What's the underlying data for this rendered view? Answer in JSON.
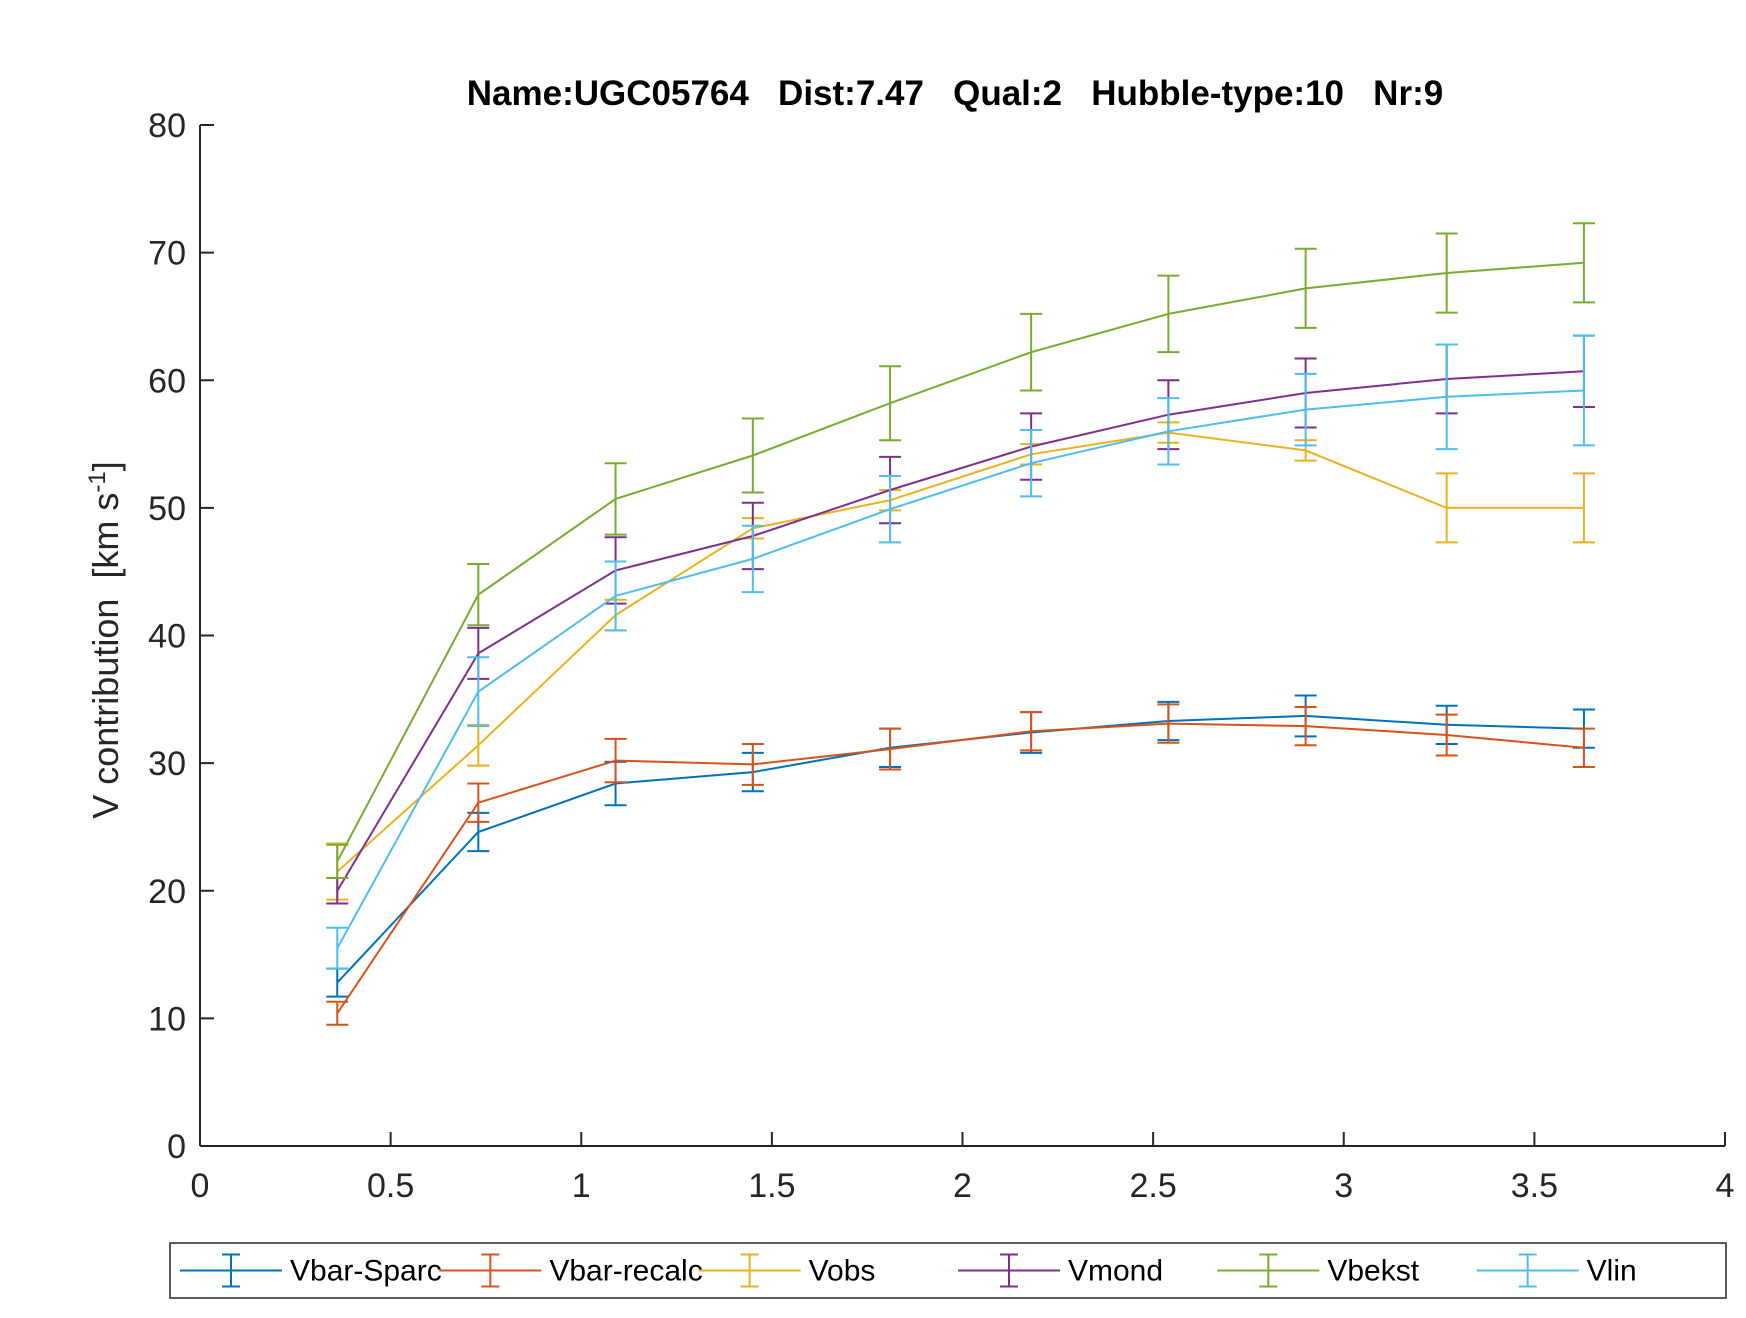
{
  "chart_data": {
    "type": "line",
    "title": "Name:UGC05764   Dist:7.47   Qual:2   Hubble-type:10   Nr:9",
    "xlabel": "",
    "ylabel_main": "V contribution  [km s",
    "ylabel_sup": "-1",
    "ylabel_close": "]",
    "xlim": [
      0,
      4
    ],
    "ylim": [
      0,
      80
    ],
    "xticks": [
      0,
      0.5,
      1,
      1.5,
      2,
      2.5,
      3,
      3.5,
      4
    ],
    "xtick_labels": [
      "0",
      "0.5",
      "1",
      "1.5",
      "2",
      "2.5",
      "3",
      "3.5",
      "4"
    ],
    "yticks": [
      0,
      10,
      20,
      30,
      40,
      50,
      60,
      70,
      80
    ],
    "ytick_labels": [
      "0",
      "10",
      "20",
      "30",
      "40",
      "50",
      "60",
      "70",
      "80"
    ],
    "grid": false,
    "legend_position": "bottom-outside",
    "x": [
      0.36,
      0.73,
      1.09,
      1.45,
      1.81,
      2.18,
      2.54,
      2.9,
      3.27,
      3.63
    ],
    "series": [
      {
        "name": "Vbar-Sparc",
        "color": "#0072BD",
        "values": [
          12.8,
          24.6,
          28.4,
          29.3,
          31.2,
          32.4,
          33.3,
          33.7,
          33.0,
          32.7
        ],
        "errors": [
          1.1,
          1.5,
          1.7,
          1.5,
          1.5,
          1.6,
          1.5,
          1.6,
          1.5,
          1.5
        ]
      },
      {
        "name": "Vbar-recalc",
        "color": "#D95319",
        "values": [
          10.4,
          26.9,
          30.2,
          29.9,
          31.1,
          32.5,
          33.1,
          32.9,
          32.2,
          31.2
        ],
        "errors": [
          0.9,
          1.5,
          1.7,
          1.6,
          1.6,
          1.5,
          1.5,
          1.5,
          1.6,
          1.5
        ]
      },
      {
        "name": "Vobs",
        "color": "#EDB120",
        "values": [
          21.5,
          31.4,
          41.6,
          48.4,
          50.6,
          54.2,
          55.9,
          54.5,
          50.0,
          50.0
        ],
        "errors": [
          2.2,
          1.6,
          1.2,
          0.8,
          0.8,
          0.8,
          0.8,
          0.8,
          2.7,
          2.7
        ]
      },
      {
        "name": "Vmond",
        "color": "#7E2F8E",
        "values": [
          20.0,
          38.6,
          45.1,
          47.8,
          51.4,
          54.8,
          57.3,
          59.0,
          60.1,
          60.7
        ],
        "errors": [
          1.0,
          2.0,
          2.6,
          2.6,
          2.6,
          2.6,
          2.7,
          2.7,
          2.7,
          2.8
        ]
      },
      {
        "name": "Vbekst",
        "color": "#77AC30",
        "values": [
          22.3,
          43.2,
          50.7,
          54.1,
          58.2,
          62.2,
          65.2,
          67.2,
          68.4,
          69.2
        ],
        "errors": [
          1.3,
          2.4,
          2.8,
          2.9,
          2.9,
          3.0,
          3.0,
          3.1,
          3.1,
          3.1
        ]
      },
      {
        "name": "Vlin",
        "color": "#4DBEEE",
        "values": [
          15.5,
          35.6,
          43.1,
          46.0,
          49.9,
          53.5,
          56.0,
          57.7,
          58.7,
          59.2
        ],
        "errors": [
          1.6,
          2.7,
          2.7,
          2.6,
          2.6,
          2.6,
          2.6,
          2.8,
          4.1,
          4.3
        ]
      }
    ]
  }
}
